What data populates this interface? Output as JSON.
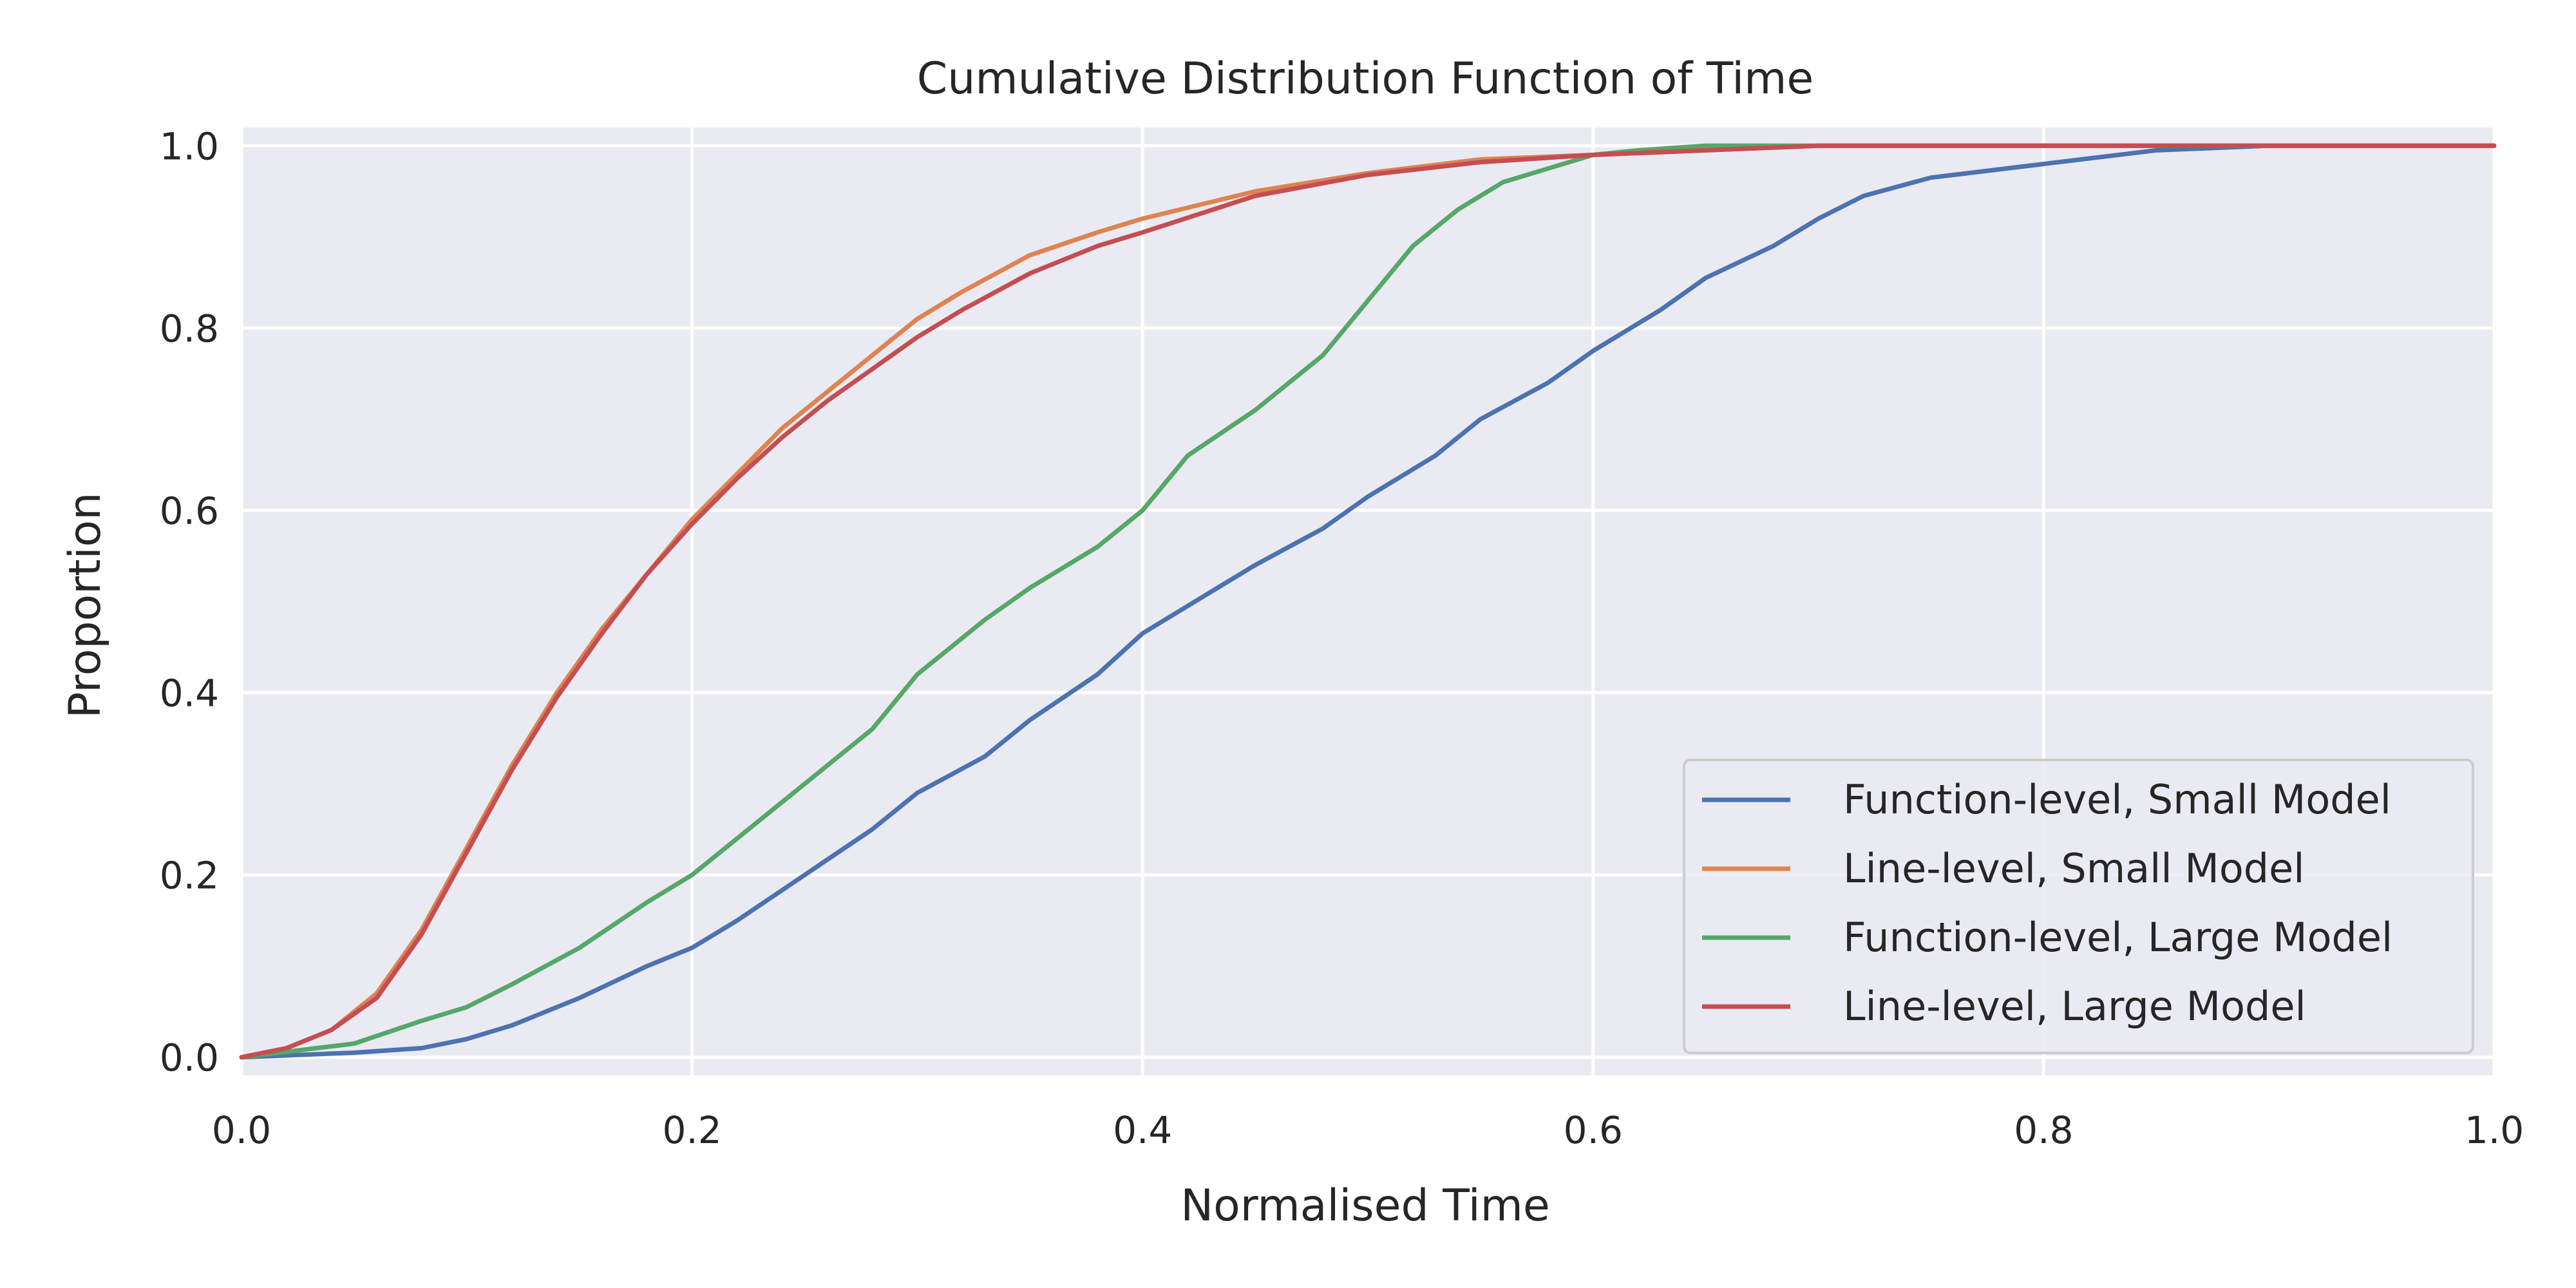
{
  "chart_data": {
    "type": "line",
    "title": "Cumulative Distribution Function of Time",
    "xlabel": "Normalised Time",
    "ylabel": "Proportion",
    "xlim": [
      0.0,
      1.0
    ],
    "ylim": [
      -0.02,
      1.02
    ],
    "grid": true,
    "legend_position": "lower-right",
    "x_ticks": [
      {
        "value": 0.0,
        "label": "0.0"
      },
      {
        "value": 0.2,
        "label": "0.2"
      },
      {
        "value": 0.4,
        "label": "0.4"
      },
      {
        "value": 0.6,
        "label": "0.6"
      },
      {
        "value": 0.8,
        "label": "0.8"
      },
      {
        "value": 1.0,
        "label": "1.0"
      }
    ],
    "y_ticks": [
      {
        "value": 0.0,
        "label": "0.0"
      },
      {
        "value": 0.2,
        "label": "0.2"
      },
      {
        "value": 0.4,
        "label": "0.4"
      },
      {
        "value": 0.6,
        "label": "0.6"
      },
      {
        "value": 0.8,
        "label": "0.8"
      },
      {
        "value": 1.0,
        "label": "1.0"
      }
    ],
    "colors": {
      "plot_background": "#eaeaf2",
      "grid": "#ffffff",
      "text": "#262626",
      "legend_background": "#eaeaf2",
      "legend_border": "#cccccc"
    },
    "series": [
      {
        "name": "Function-level, Small Model",
        "color": "#4c72b0",
        "x": [
          0.0,
          0.05,
          0.08,
          0.1,
          0.12,
          0.15,
          0.18,
          0.2,
          0.22,
          0.25,
          0.28,
          0.3,
          0.33,
          0.35,
          0.38,
          0.4,
          0.43,
          0.45,
          0.48,
          0.5,
          0.53,
          0.55,
          0.58,
          0.6,
          0.63,
          0.65,
          0.68,
          0.7,
          0.72,
          0.75,
          0.8,
          0.85,
          0.9,
          1.0
        ],
        "y": [
          0.0,
          0.005,
          0.01,
          0.02,
          0.035,
          0.065,
          0.1,
          0.12,
          0.15,
          0.2,
          0.25,
          0.29,
          0.33,
          0.37,
          0.42,
          0.465,
          0.51,
          0.54,
          0.58,
          0.615,
          0.66,
          0.7,
          0.74,
          0.775,
          0.82,
          0.855,
          0.89,
          0.92,
          0.945,
          0.965,
          0.98,
          0.995,
          1.0,
          1.0
        ]
      },
      {
        "name": "Line-level, Small Model",
        "color": "#dd8452",
        "x": [
          0.0,
          0.02,
          0.04,
          0.06,
          0.08,
          0.1,
          0.12,
          0.14,
          0.16,
          0.18,
          0.2,
          0.22,
          0.24,
          0.26,
          0.28,
          0.3,
          0.32,
          0.35,
          0.38,
          0.4,
          0.45,
          0.5,
          0.55,
          0.6,
          0.65,
          0.7,
          0.8,
          1.0
        ],
        "y": [
          0.0,
          0.01,
          0.03,
          0.07,
          0.14,
          0.23,
          0.32,
          0.4,
          0.47,
          0.53,
          0.59,
          0.64,
          0.69,
          0.73,
          0.77,
          0.81,
          0.84,
          0.88,
          0.905,
          0.92,
          0.95,
          0.97,
          0.985,
          0.99,
          0.995,
          1.0,
          1.0,
          1.0
        ]
      },
      {
        "name": "Function-level, Large Model",
        "color": "#55a868",
        "x": [
          0.0,
          0.05,
          0.08,
          0.1,
          0.12,
          0.15,
          0.18,
          0.2,
          0.22,
          0.25,
          0.28,
          0.3,
          0.33,
          0.35,
          0.38,
          0.4,
          0.42,
          0.45,
          0.48,
          0.5,
          0.52,
          0.54,
          0.56,
          0.58,
          0.6,
          0.62,
          0.65,
          0.7,
          1.0
        ],
        "y": [
          0.0,
          0.015,
          0.04,
          0.055,
          0.08,
          0.12,
          0.17,
          0.2,
          0.24,
          0.3,
          0.36,
          0.42,
          0.48,
          0.515,
          0.56,
          0.6,
          0.66,
          0.71,
          0.77,
          0.83,
          0.89,
          0.93,
          0.96,
          0.975,
          0.99,
          0.995,
          1.0,
          1.0,
          1.0
        ]
      },
      {
        "name": "Line-level, Large Model",
        "color": "#c44e52",
        "x": [
          0.0,
          0.02,
          0.04,
          0.06,
          0.08,
          0.1,
          0.12,
          0.14,
          0.16,
          0.18,
          0.2,
          0.22,
          0.24,
          0.26,
          0.28,
          0.3,
          0.32,
          0.35,
          0.38,
          0.4,
          0.45,
          0.5,
          0.55,
          0.6,
          0.65,
          0.7,
          0.8,
          1.0
        ],
        "y": [
          0.0,
          0.01,
          0.03,
          0.065,
          0.135,
          0.225,
          0.315,
          0.395,
          0.465,
          0.53,
          0.585,
          0.635,
          0.68,
          0.72,
          0.755,
          0.79,
          0.82,
          0.86,
          0.89,
          0.905,
          0.945,
          0.968,
          0.982,
          0.99,
          0.995,
          1.0,
          1.0,
          1.0
        ]
      }
    ]
  }
}
